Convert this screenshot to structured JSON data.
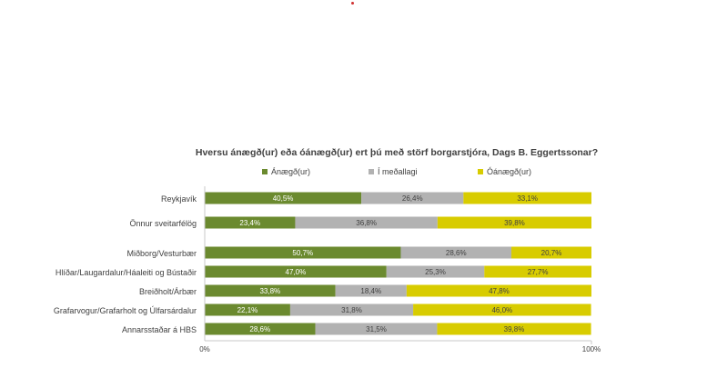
{
  "chart_data": {
    "type": "bar",
    "stacked": true,
    "orientation": "horizontal",
    "title": "Hversu ánægð(ur) eða óánægð(ur) ert þú með störf borgarstjóra, Dags B. Eggertssonar?",
    "legend_position": "top",
    "xlim": [
      0,
      100
    ],
    "x_tick_labels": [
      "0%",
      "100%"
    ],
    "grid": false,
    "categories": [
      "Reykjavík",
      "Önnur sveitarfélög",
      "Miðborg/Vesturbær",
      "Hlíðar/Laugardalur/Háaleiti og Bústaðir",
      "Breiðholt/Árbær",
      "Grafarvogur/Grafarholt og Úlfarsárdalur",
      "Annarsstaðar á HBS"
    ],
    "series": [
      {
        "name": "Ánægð(ur)",
        "color": "#6b8a2f",
        "values": [
          40.5,
          23.4,
          50.7,
          47.0,
          33.8,
          22.1,
          28.6
        ],
        "labels": [
          "40,5%",
          "23,4%",
          "50,7%",
          "47,0%",
          "33,8%",
          "22,1%",
          "28,6%"
        ]
      },
      {
        "name": "Í meðallagi",
        "color": "#b2b2b2",
        "values": [
          26.4,
          36.8,
          28.6,
          25.3,
          18.4,
          31.8,
          31.5
        ],
        "labels": [
          "26,4%",
          "36,8%",
          "28,6%",
          "25,3%",
          "18,4%",
          "31,8%",
          "31,5%"
        ]
      },
      {
        "name": "Óánægð(ur)",
        "color": "#d8cc00",
        "values": [
          33.1,
          39.8,
          20.7,
          27.7,
          47.8,
          46.0,
          39.8
        ],
        "labels": [
          "33,1%",
          "39,8%",
          "20,7%",
          "27,7%",
          "47,8%",
          "46,0%",
          "39,8%"
        ]
      }
    ]
  }
}
